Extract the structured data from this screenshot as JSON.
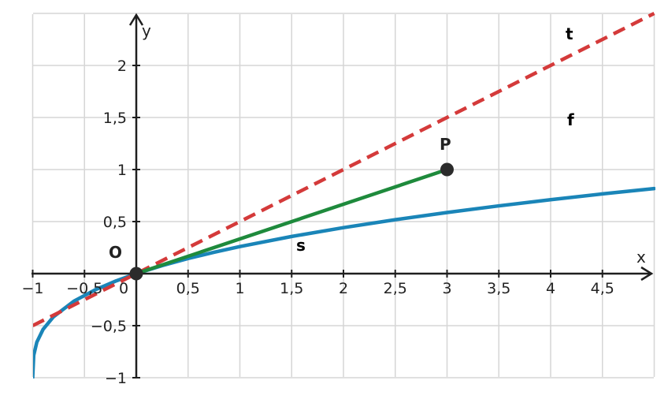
{
  "chart_data": {
    "type": "line",
    "xlabel": "x",
    "ylabel": "y",
    "xlim": [
      -1,
      5
    ],
    "ylim": [
      -1,
      2.5
    ],
    "grid": true,
    "x_ticks": [
      -1,
      -0.5,
      0,
      0.5,
      1,
      1.5,
      2,
      2.5,
      3,
      3.5,
      4,
      4.5
    ],
    "x_tick_labels": [
      "−1",
      "−0,5",
      "0",
      "0,5",
      "1",
      "1,5",
      "2",
      "2,5",
      "3",
      "3,5",
      "4",
      "4,5"
    ],
    "y_ticks": [
      -1,
      -0.5,
      0.5,
      1,
      1.5,
      2
    ],
    "y_tick_labels": [
      "−1",
      "−0,5",
      "0,5",
      "1",
      "1,5",
      "2"
    ],
    "series": [
      {
        "name": "f",
        "color": "#1a85b8",
        "style": "solid",
        "x": [
          -1,
          -0.99,
          -0.96,
          -0.9,
          -0.8,
          -0.6,
          -0.4,
          -0.2,
          0,
          0.25,
          0.5,
          0.75,
          1,
          1.5,
          2,
          2.5,
          3,
          3.5,
          4,
          4.5,
          5
        ],
        "y": [
          -1,
          -0.785,
          -0.658,
          -0.536,
          -0.415,
          -0.263,
          -0.157,
          -0.072,
          0,
          0.077,
          0.145,
          0.205,
          0.26,
          0.357,
          0.442,
          0.518,
          0.587,
          0.651,
          0.71,
          0.766,
          0.817
        ]
      },
      {
        "name": "t",
        "color": "#d43a3a",
        "style": "dashed",
        "x": [
          -1,
          5
        ],
        "y": [
          -0.5,
          2.5
        ]
      },
      {
        "name": "s",
        "color": "#1e8a3c",
        "style": "solid",
        "x": [
          0,
          3
        ],
        "y": [
          0,
          1
        ]
      }
    ],
    "points": [
      {
        "label": "O",
        "x": 0,
        "y": 0
      },
      {
        "label": "P",
        "x": 3,
        "y": 1
      }
    ]
  }
}
